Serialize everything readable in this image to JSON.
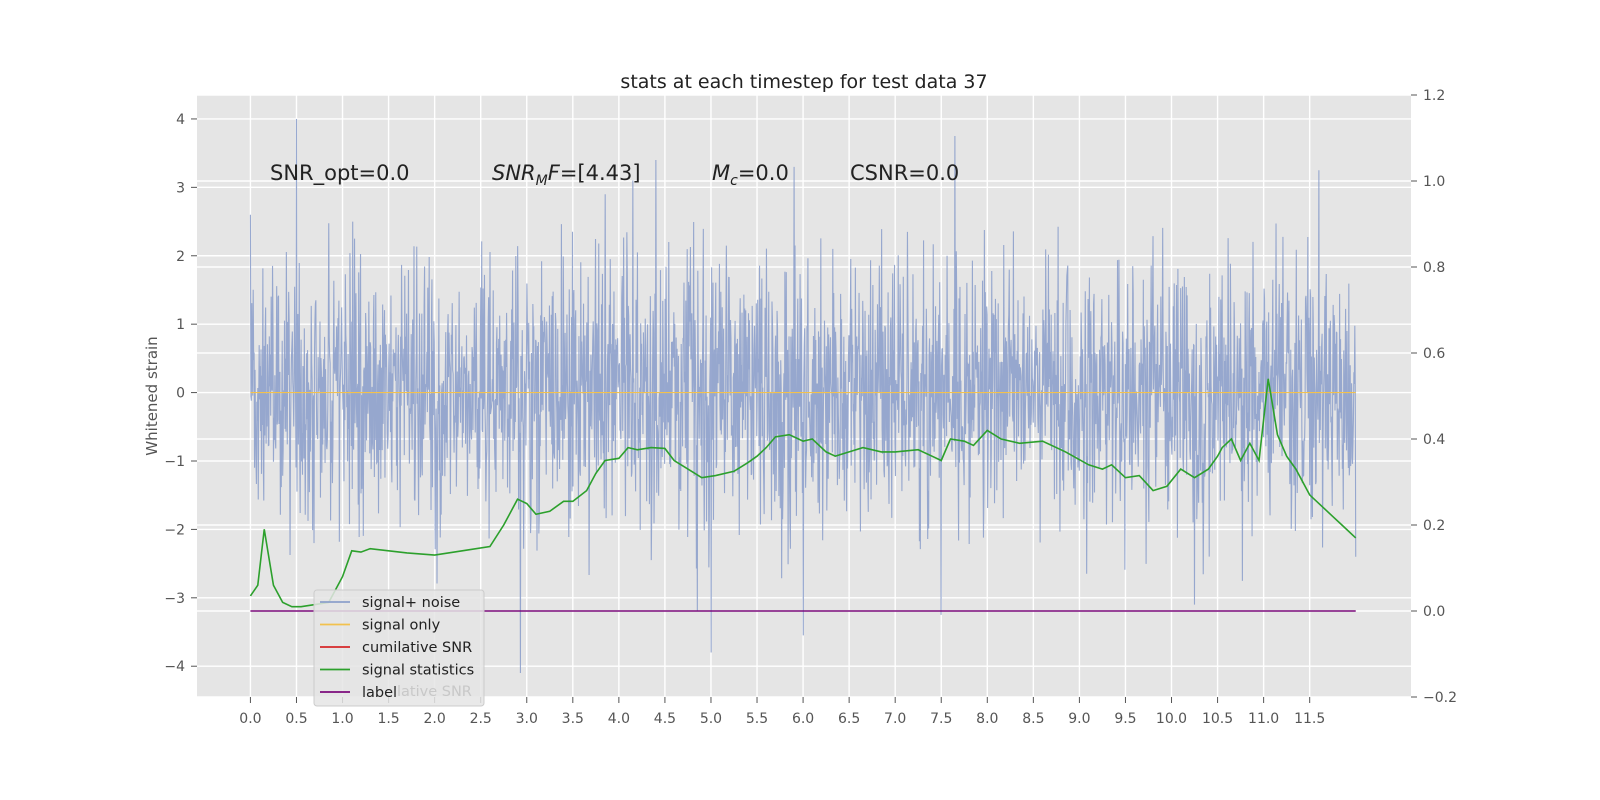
{
  "chart_data": {
    "type": "line",
    "title": "stats at each timestep for test data 37",
    "ylabel_left": "Whitened strain",
    "ylabel_right": "",
    "xlabel": "",
    "xlim": [
      -0.58,
      12.6
    ],
    "ylim_left": [
      -4.45,
      4.35
    ],
    "ylim_right": [
      -0.2,
      1.2
    ],
    "grid": true,
    "x_ticks": [
      "0.0",
      "0.5",
      "1.0",
      "1.5",
      "2.0",
      "2.5",
      "3.0",
      "3.5",
      "4.0",
      "4.5",
      "5.0",
      "5.5",
      "6.0",
      "6.5",
      "7.0",
      "7.5",
      "8.0",
      "8.5",
      "9.0",
      "9.5",
      "10.0",
      "10.5",
      "11.0",
      "11.5"
    ],
    "y_ticks_left": [
      "4",
      "3",
      "2",
      "1",
      "0",
      "−1",
      "−2",
      "−3",
      "−4"
    ],
    "y_ticks_right": [
      "1.2",
      "1.0",
      "0.8",
      "0.6",
      "0.4",
      "0.2",
      "0.0",
      "−0.2"
    ],
    "annotations": [
      {
        "text": "SNR_opt=0.0"
      },
      {
        "text": "SNR_MF=[4.43]"
      },
      {
        "text": "M_c=0.0"
      },
      {
        "text": "CSNR=0.0"
      }
    ],
    "legend_position": "lower-left",
    "legend": [
      {
        "label": "signal+ noise",
        "color": "#8da0cb"
      },
      {
        "label": "signal only",
        "color": "#f2c14e"
      },
      {
        "label": "cumilative SNR",
        "color": "#d62728"
      },
      {
        "label": "signal statistics",
        "color": "#2ca02c"
      },
      {
        "label": "label",
        "color": "#7b0a7b"
      }
    ],
    "legend_ghost_text": "lative SNR",
    "series": [
      {
        "name": "signal+ noise",
        "axis": "left",
        "color": "#8da0cb",
        "description_range": [
          -4.1,
          4.0
        ],
        "x_range": [
          0.0,
          12.0
        ],
        "envelope": {
          "upper_typical": 1.9,
          "lower_typical": -2.2
        },
        "peaks": [
          {
            "x": 0.0,
            "y": 2.6
          },
          {
            "x": 0.5,
            "y": 4.0
          },
          {
            "x": 2.93,
            "y": -4.1
          },
          {
            "x": 4.4,
            "y": 3.4
          },
          {
            "x": 4.15,
            "y": 3.1
          },
          {
            "x": 5.0,
            "y": -3.8
          },
          {
            "x": 5.9,
            "y": 3.3
          },
          {
            "x": 6.0,
            "y": -3.55
          },
          {
            "x": 7.5,
            "y": -3.25
          },
          {
            "x": 7.65,
            "y": 3.75
          },
          {
            "x": 10.25,
            "y": -3.1
          },
          {
            "x": 11.6,
            "y": 3.25
          },
          {
            "x": 12.0,
            "y": -2.4
          },
          {
            "x": 4.85,
            "y": -3.2
          },
          {
            "x": 3.85,
            "y": 2.9
          }
        ]
      },
      {
        "name": "signal only",
        "axis": "left",
        "color": "#f2c14e",
        "x": [
          0.0,
          12.0
        ],
        "y": [
          0.0,
          0.0
        ]
      },
      {
        "name": "signal statistics",
        "axis": "right",
        "color": "#2ca02c",
        "x": [
          0.0,
          0.08,
          0.15,
          0.25,
          0.35,
          0.45,
          0.55,
          0.7,
          0.85,
          0.95,
          1.0,
          1.1,
          1.2,
          1.3,
          1.5,
          1.7,
          2.0,
          2.3,
          2.6,
          2.75,
          2.9,
          3.0,
          3.1,
          3.25,
          3.4,
          3.5,
          3.65,
          3.75,
          3.85,
          4.0,
          4.1,
          4.2,
          4.35,
          4.5,
          4.6,
          4.75,
          4.9,
          5.05,
          5.25,
          5.4,
          5.5,
          5.6,
          5.7,
          5.85,
          6.0,
          6.1,
          6.25,
          6.35,
          6.5,
          6.65,
          6.85,
          7.0,
          7.25,
          7.4,
          7.5,
          7.6,
          7.75,
          7.85,
          8.0,
          8.15,
          8.35,
          8.6,
          8.85,
          9.1,
          9.25,
          9.35,
          9.5,
          9.65,
          9.8,
          9.95,
          10.1,
          10.25,
          10.4,
          10.5,
          10.55,
          10.65,
          10.75,
          10.85,
          10.95,
          11.05,
          11.15,
          11.25,
          11.35,
          11.5,
          11.65,
          11.75,
          11.85,
          12.0
        ],
        "y": [
          0.035,
          0.06,
          0.19,
          0.06,
          0.02,
          0.01,
          0.01,
          0.015,
          0.02,
          0.06,
          0.08,
          0.14,
          0.137,
          0.145,
          0.14,
          0.135,
          0.13,
          0.14,
          0.15,
          0.2,
          0.26,
          0.25,
          0.225,
          0.232,
          0.255,
          0.255,
          0.28,
          0.32,
          0.35,
          0.355,
          0.38,
          0.375,
          0.38,
          0.378,
          0.35,
          0.33,
          0.31,
          0.315,
          0.325,
          0.345,
          0.36,
          0.38,
          0.405,
          0.41,
          0.395,
          0.4,
          0.37,
          0.36,
          0.37,
          0.38,
          0.37,
          0.37,
          0.375,
          0.36,
          0.35,
          0.4,
          0.395,
          0.385,
          0.42,
          0.4,
          0.39,
          0.395,
          0.37,
          0.34,
          0.33,
          0.34,
          0.31,
          0.315,
          0.28,
          0.29,
          0.33,
          0.31,
          0.33,
          0.36,
          0.38,
          0.4,
          0.35,
          0.39,
          0.35,
          0.54,
          0.41,
          0.36,
          0.33,
          0.27,
          0.24,
          0.22,
          0.2,
          0.17
        ]
      },
      {
        "name": "label",
        "axis": "right",
        "color": "#7b0a7b",
        "x": [
          0.0,
          12.0
        ],
        "y": [
          0.0,
          0.0
        ]
      }
    ]
  }
}
